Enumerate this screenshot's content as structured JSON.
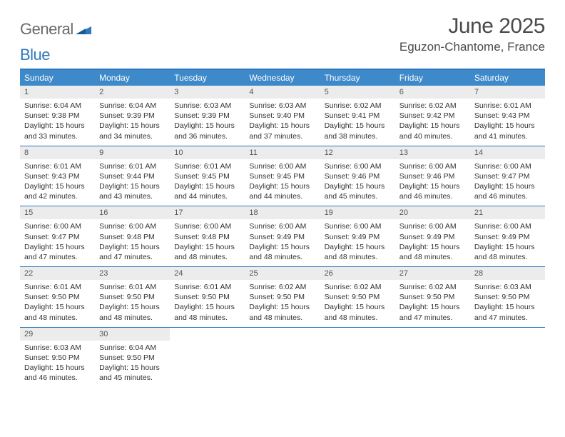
{
  "logo": {
    "word1": "General",
    "word2": "Blue"
  },
  "title": "June 2025",
  "location": "Eguzon-Chantome, France",
  "header_bg": "#3d89c9",
  "border_color": "#2f78bd",
  "daynum_bg": "#ececec",
  "daynames": [
    "Sunday",
    "Monday",
    "Tuesday",
    "Wednesday",
    "Thursday",
    "Friday",
    "Saturday"
  ],
  "weeks": [
    [
      {
        "n": "1",
        "sr": "6:04 AM",
        "ss": "9:38 PM",
        "dl": "15 hours and 33 minutes."
      },
      {
        "n": "2",
        "sr": "6:04 AM",
        "ss": "9:39 PM",
        "dl": "15 hours and 34 minutes."
      },
      {
        "n": "3",
        "sr": "6:03 AM",
        "ss": "9:39 PM",
        "dl": "15 hours and 36 minutes."
      },
      {
        "n": "4",
        "sr": "6:03 AM",
        "ss": "9:40 PM",
        "dl": "15 hours and 37 minutes."
      },
      {
        "n": "5",
        "sr": "6:02 AM",
        "ss": "9:41 PM",
        "dl": "15 hours and 38 minutes."
      },
      {
        "n": "6",
        "sr": "6:02 AM",
        "ss": "9:42 PM",
        "dl": "15 hours and 40 minutes."
      },
      {
        "n": "7",
        "sr": "6:01 AM",
        "ss": "9:43 PM",
        "dl": "15 hours and 41 minutes."
      }
    ],
    [
      {
        "n": "8",
        "sr": "6:01 AM",
        "ss": "9:43 PM",
        "dl": "15 hours and 42 minutes."
      },
      {
        "n": "9",
        "sr": "6:01 AM",
        "ss": "9:44 PM",
        "dl": "15 hours and 43 minutes."
      },
      {
        "n": "10",
        "sr": "6:01 AM",
        "ss": "9:45 PM",
        "dl": "15 hours and 44 minutes."
      },
      {
        "n": "11",
        "sr": "6:00 AM",
        "ss": "9:45 PM",
        "dl": "15 hours and 44 minutes."
      },
      {
        "n": "12",
        "sr": "6:00 AM",
        "ss": "9:46 PM",
        "dl": "15 hours and 45 minutes."
      },
      {
        "n": "13",
        "sr": "6:00 AM",
        "ss": "9:46 PM",
        "dl": "15 hours and 46 minutes."
      },
      {
        "n": "14",
        "sr": "6:00 AM",
        "ss": "9:47 PM",
        "dl": "15 hours and 46 minutes."
      }
    ],
    [
      {
        "n": "15",
        "sr": "6:00 AM",
        "ss": "9:47 PM",
        "dl": "15 hours and 47 minutes."
      },
      {
        "n": "16",
        "sr": "6:00 AM",
        "ss": "9:48 PM",
        "dl": "15 hours and 47 minutes."
      },
      {
        "n": "17",
        "sr": "6:00 AM",
        "ss": "9:48 PM",
        "dl": "15 hours and 48 minutes."
      },
      {
        "n": "18",
        "sr": "6:00 AM",
        "ss": "9:49 PM",
        "dl": "15 hours and 48 minutes."
      },
      {
        "n": "19",
        "sr": "6:00 AM",
        "ss": "9:49 PM",
        "dl": "15 hours and 48 minutes."
      },
      {
        "n": "20",
        "sr": "6:00 AM",
        "ss": "9:49 PM",
        "dl": "15 hours and 48 minutes."
      },
      {
        "n": "21",
        "sr": "6:00 AM",
        "ss": "9:49 PM",
        "dl": "15 hours and 48 minutes."
      }
    ],
    [
      {
        "n": "22",
        "sr": "6:01 AM",
        "ss": "9:50 PM",
        "dl": "15 hours and 48 minutes."
      },
      {
        "n": "23",
        "sr": "6:01 AM",
        "ss": "9:50 PM",
        "dl": "15 hours and 48 minutes."
      },
      {
        "n": "24",
        "sr": "6:01 AM",
        "ss": "9:50 PM",
        "dl": "15 hours and 48 minutes."
      },
      {
        "n": "25",
        "sr": "6:02 AM",
        "ss": "9:50 PM",
        "dl": "15 hours and 48 minutes."
      },
      {
        "n": "26",
        "sr": "6:02 AM",
        "ss": "9:50 PM",
        "dl": "15 hours and 48 minutes."
      },
      {
        "n": "27",
        "sr": "6:02 AM",
        "ss": "9:50 PM",
        "dl": "15 hours and 47 minutes."
      },
      {
        "n": "28",
        "sr": "6:03 AM",
        "ss": "9:50 PM",
        "dl": "15 hours and 47 minutes."
      }
    ],
    [
      {
        "n": "29",
        "sr": "6:03 AM",
        "ss": "9:50 PM",
        "dl": "15 hours and 46 minutes."
      },
      {
        "n": "30",
        "sr": "6:04 AM",
        "ss": "9:50 PM",
        "dl": "15 hours and 45 minutes."
      },
      null,
      null,
      null,
      null,
      null
    ]
  ],
  "labels": {
    "sunrise": "Sunrise: ",
    "sunset": "Sunset: ",
    "daylight": "Daylight: "
  }
}
